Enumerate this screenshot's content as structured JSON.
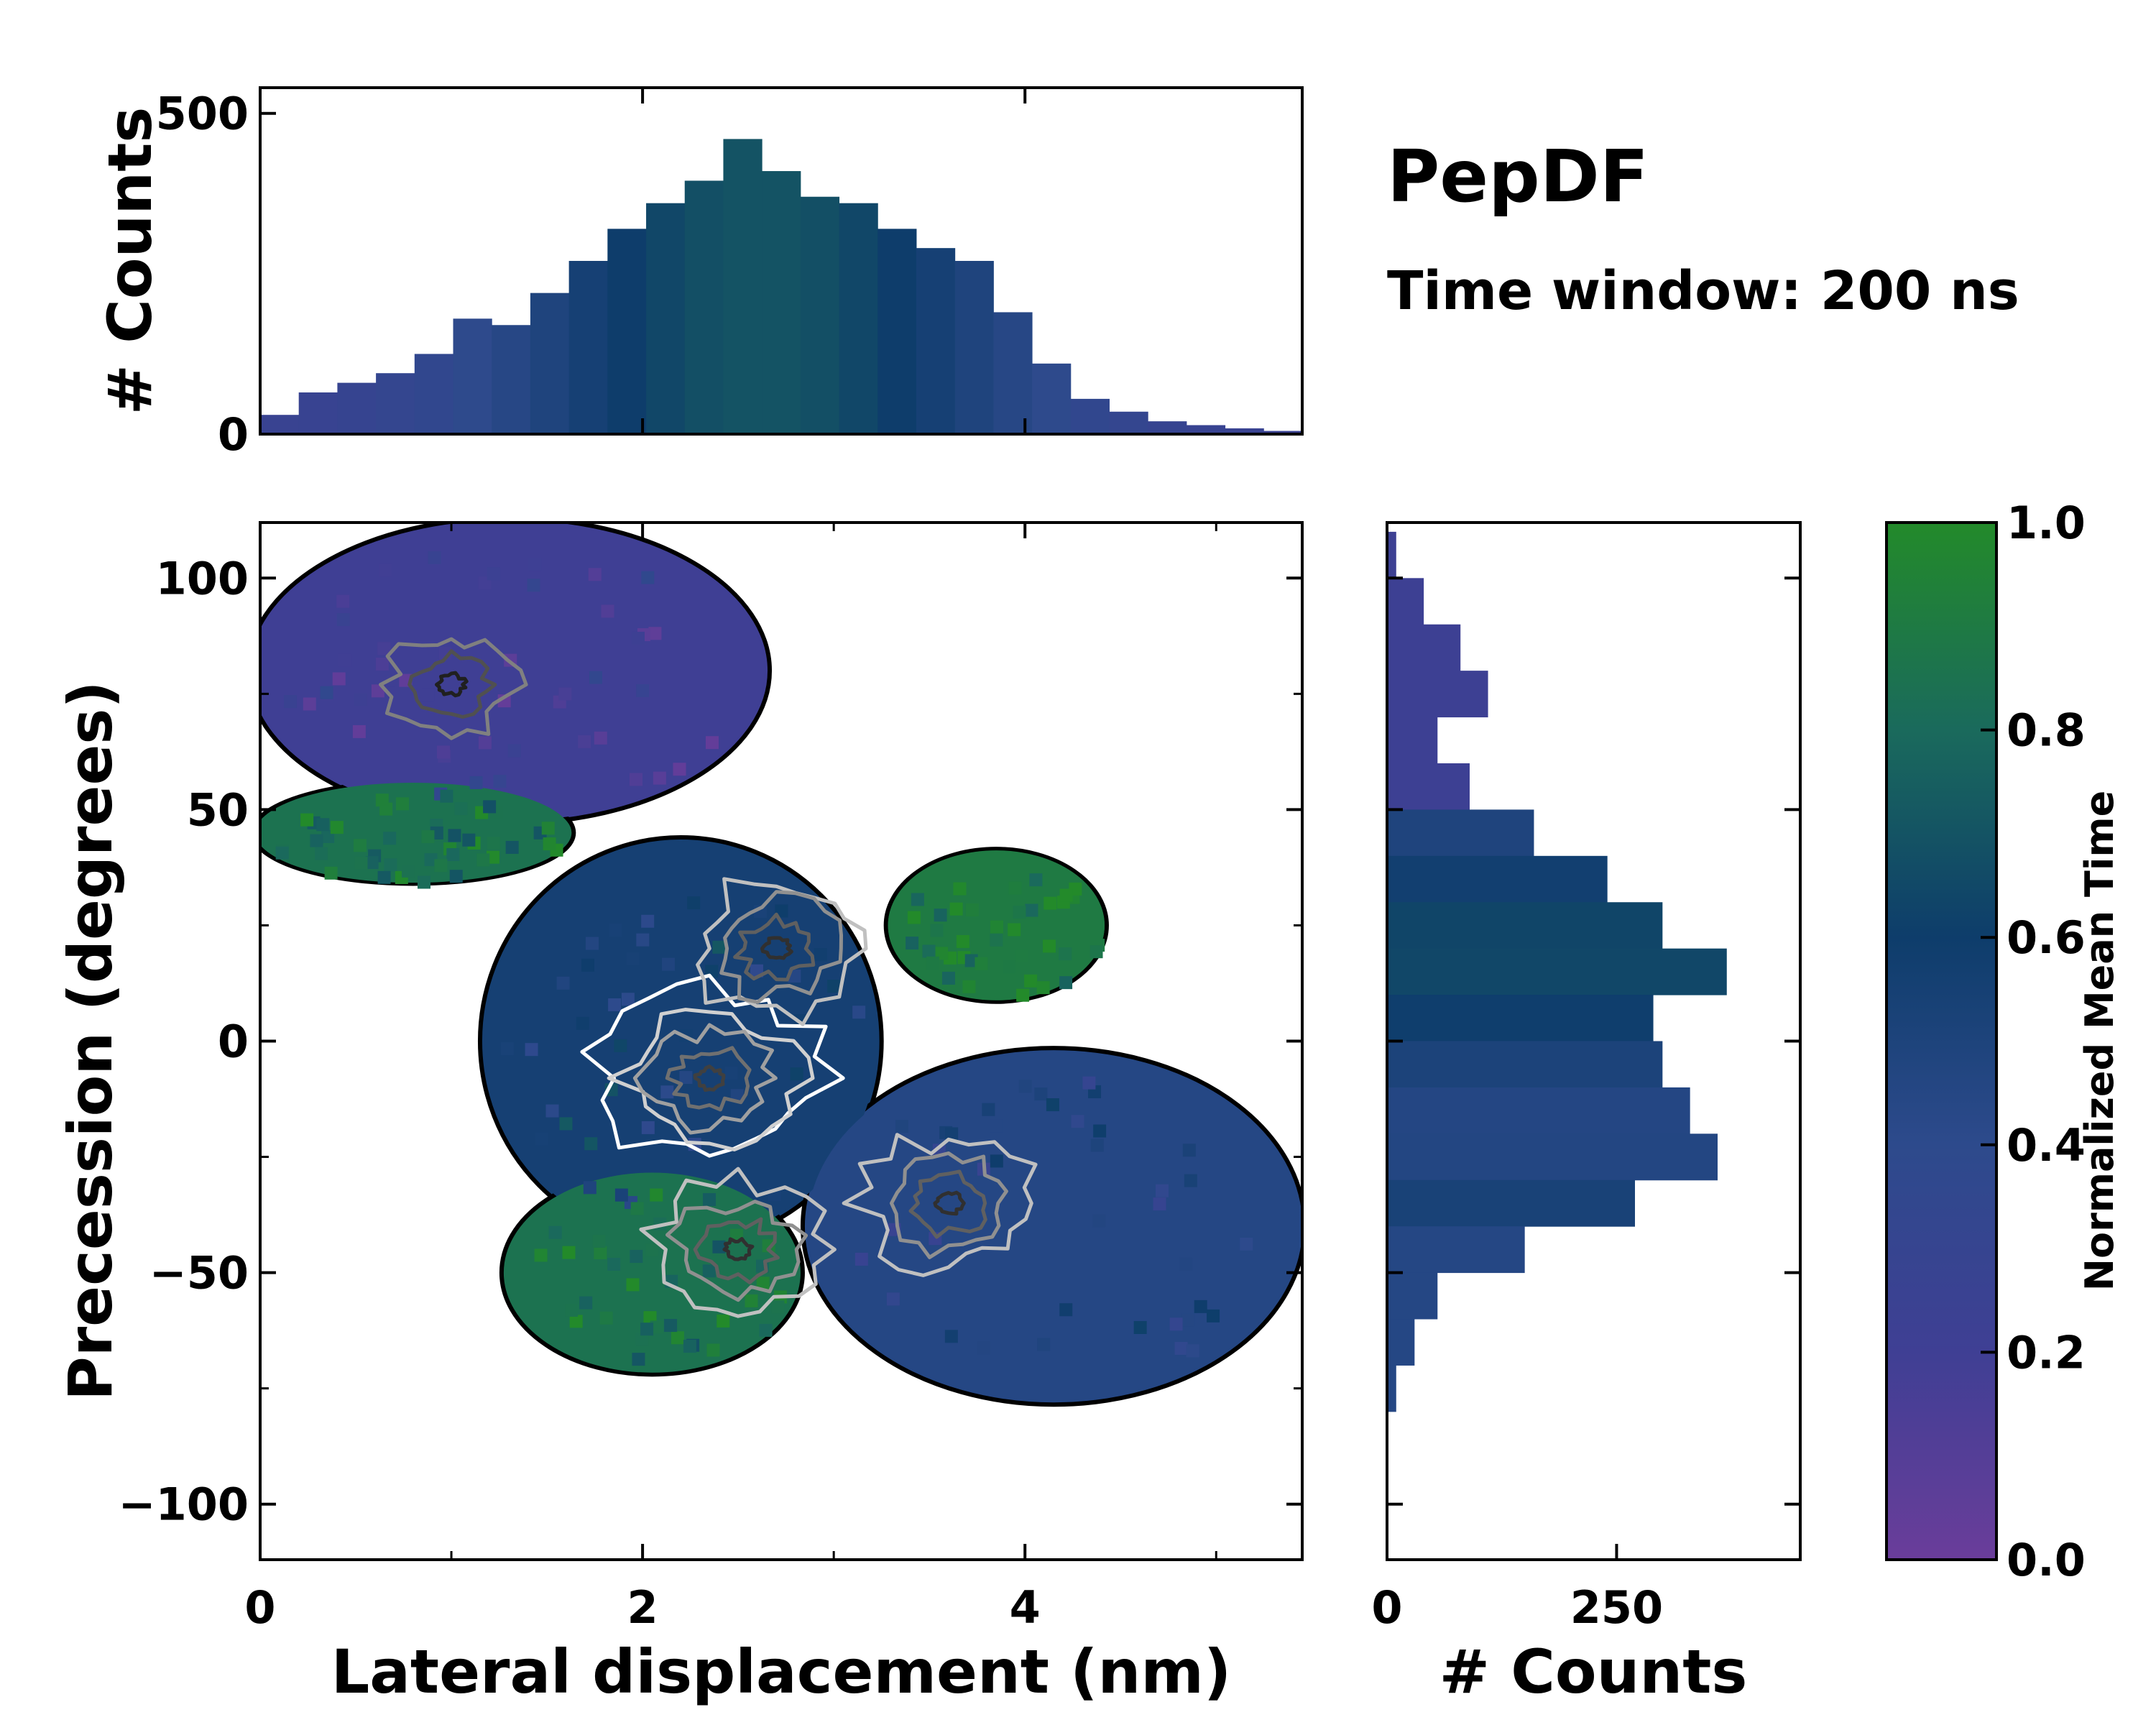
{
  "title": "PepDF",
  "subtitle": "Time window: 200 ns",
  "colors": {
    "purple": "#6a3d9a",
    "blue": "#2d4a8c",
    "navy": "#0e3d6b",
    "teal": "#1a6a5c",
    "green": "#238a2a"
  },
  "chart_data": [
    {
      "type": "heatmap",
      "name": "main-2d-density",
      "title": "",
      "xlabel": "Lateral displacement (nm)",
      "ylabel": "Precession (degrees)",
      "xlim": [
        0,
        5.45
      ],
      "ylim": [
        -112,
        112
      ],
      "xticks": [
        0,
        2,
        4
      ],
      "xtick_labels": [
        "0",
        "2",
        "4"
      ],
      "yticks": [
        -100,
        -50,
        0,
        50,
        100
      ],
      "ytick_labels": [
        "−100",
        "−50",
        "0",
        "50",
        "100"
      ],
      "regions": [
        {
          "label": "upper-left lobe",
          "x": [
            0,
            2.6
          ],
          "y": [
            50,
            110
          ],
          "mean_time": 0.2
        },
        {
          "label": "left green band",
          "x": [
            0,
            1.6
          ],
          "y": [
            35,
            55
          ],
          "mean_time": 0.85
        },
        {
          "label": "central core",
          "x": [
            1.2,
            3.2
          ],
          "y": [
            -40,
            40
          ],
          "mean_time": 0.55
        },
        {
          "label": "right green lobe",
          "x": [
            3.3,
            4.4
          ],
          "y": [
            10,
            40
          ],
          "mean_time": 0.9
        },
        {
          "label": "lower green region",
          "x": [
            1.3,
            2.8
          ],
          "y": [
            -70,
            -30
          ],
          "mean_time": 0.85
        },
        {
          "label": "lower-right blue region",
          "x": [
            2.9,
            5.4
          ],
          "y": [
            -75,
            -5
          ],
          "mean_time": 0.45
        }
      ],
      "contour_peaks": [
        {
          "x": 2.35,
          "y": -8,
          "level": "max"
        },
        {
          "x": 2.7,
          "y": 20,
          "level": "high"
        },
        {
          "x": 3.6,
          "y": -35,
          "level": "high"
        },
        {
          "x": 2.5,
          "y": -45,
          "level": "high"
        },
        {
          "x": 1.0,
          "y": 77,
          "level": "mid"
        }
      ]
    },
    {
      "type": "bar",
      "name": "top-marginal-histogram",
      "xlabel": "",
      "ylabel": "# Counts",
      "xlim": [
        0,
        5.45
      ],
      "ylim": [
        0,
        540
      ],
      "yticks": [
        0,
        500
      ],
      "ytick_labels": [
        "0",
        "500"
      ],
      "x_centers_nm": [
        0.1,
        0.3,
        0.5,
        0.7,
        0.9,
        1.1,
        1.3,
        1.5,
        1.7,
        1.9,
        2.1,
        2.3,
        2.5,
        2.7,
        2.9,
        3.1,
        3.3,
        3.5,
        3.7,
        3.9,
        4.1,
        4.3,
        4.5,
        4.7,
        4.9,
        5.1,
        5.3
      ],
      "values": [
        30,
        65,
        80,
        95,
        125,
        180,
        170,
        220,
        270,
        320,
        360,
        395,
        460,
        410,
        370,
        360,
        320,
        290,
        270,
        190,
        110,
        55,
        35,
        20,
        14,
        9,
        5
      ]
    },
    {
      "type": "bar",
      "name": "right-marginal-histogram",
      "orientation": "horizontal",
      "xlabel": "# Counts",
      "ylabel": "",
      "xlim": [
        0,
        450
      ],
      "xticks": [
        0,
        250
      ],
      "xtick_labels": [
        "0",
        "250"
      ],
      "ylim": [
        -112,
        112
      ],
      "y_centers_deg": [
        105,
        95,
        85,
        75,
        65,
        55,
        45,
        35,
        25,
        15,
        5,
        -5,
        -15,
        -25,
        -35,
        -45,
        -55,
        -65,
        -75
      ],
      "values": [
        10,
        40,
        80,
        110,
        55,
        90,
        160,
        240,
        300,
        370,
        290,
        300,
        330,
        360,
        270,
        150,
        55,
        30,
        10
      ]
    },
    {
      "type": "colorbar",
      "name": "colorbar",
      "label": "Normalized Mean Time",
      "range": [
        0,
        1
      ],
      "ticks": [
        0.0,
        0.2,
        0.4,
        0.6,
        0.8,
        1.0
      ],
      "tick_labels": [
        "0.0",
        "0.2",
        "0.4",
        "0.6",
        "0.8",
        "1.0"
      ],
      "stops": [
        "#6a3d9a",
        "#3f3f94",
        "#2d4a8c",
        "#0e3d6b",
        "#1a6a5c",
        "#238a2a"
      ]
    }
  ]
}
